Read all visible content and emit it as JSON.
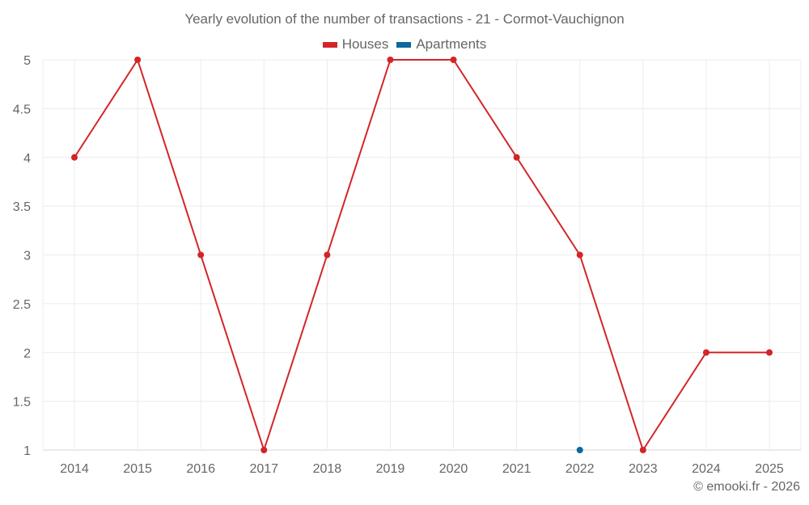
{
  "chart": {
    "title": "Yearly evolution of the number of transactions - 21 - Cormot-Vauchignon",
    "credit": "© emooki.fr - 2026"
  },
  "legend": [
    {
      "label": "Houses",
      "color": "#d32528"
    },
    {
      "label": "Apartments",
      "color": "#0e679e"
    }
  ],
  "chart_data": {
    "type": "line",
    "title": "Yearly evolution of the number of transactions - 21 - Cormot-Vauchignon",
    "xlabel": "",
    "ylabel": "",
    "categories": [
      "2014",
      "2015",
      "2016",
      "2017",
      "2018",
      "2019",
      "2020",
      "2021",
      "2022",
      "2023",
      "2024",
      "2025"
    ],
    "series": [
      {
        "name": "Houses",
        "color": "#d32528",
        "values": [
          4,
          5,
          3,
          1,
          3,
          5,
          5,
          4,
          3,
          1,
          2,
          2
        ]
      },
      {
        "name": "Apartments",
        "color": "#0e679e",
        "values": [
          null,
          null,
          null,
          null,
          null,
          null,
          null,
          null,
          1,
          null,
          null,
          null
        ]
      }
    ],
    "yticks": [
      "1",
      "1.5",
      "2",
      "2.5",
      "3",
      "3.5",
      "4",
      "4.5",
      "5"
    ],
    "ylim": [
      1,
      5
    ],
    "grid": true,
    "legend_position": "top"
  }
}
